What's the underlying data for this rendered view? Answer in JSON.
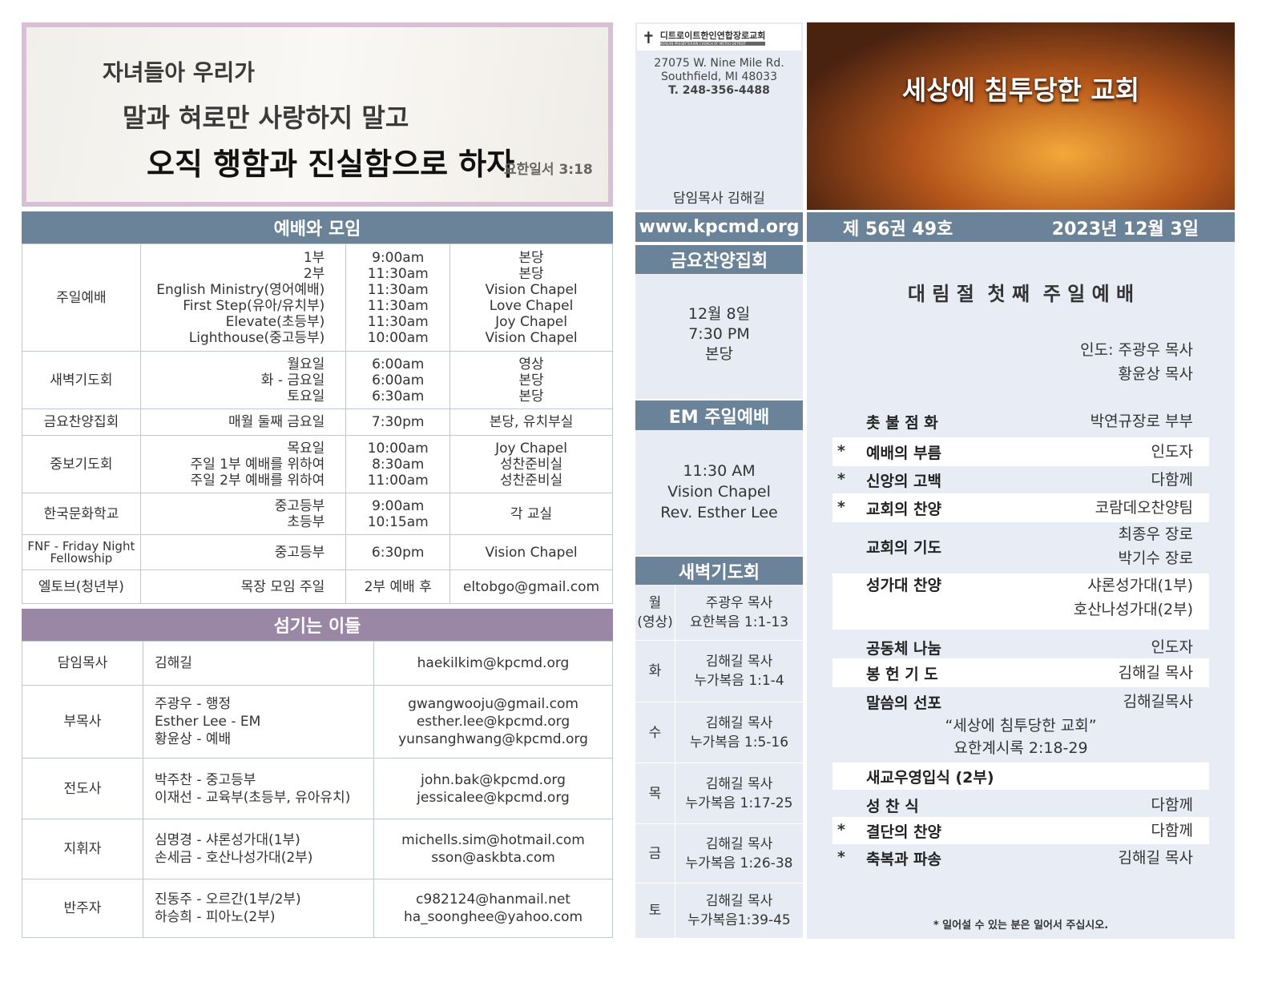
{
  "banner": {
    "line1": "자녀들아 우리가",
    "line2": "말과 혀로만 사랑하지 말고",
    "line3": "오직 행함과 진실함으로 하자",
    "ref": "요한일서 3:18"
  },
  "worship": {
    "title": "예배와 모임",
    "rows": [
      {
        "name": "주일예배",
        "what": [
          "1부",
          "2부",
          "English Ministry(영어예배)",
          "First Step(유아/유치부)",
          "Elevate(초등부)",
          "Lighthouse(중고등부)"
        ],
        "time": [
          "9:00am",
          "11:30am",
          "11:30am",
          "11:30am",
          "11:30am",
          "10:00am"
        ],
        "place": [
          "본당",
          "본당",
          "Vision Chapel",
          "Love Chapel",
          "Joy Chapel",
          "Vision Chapel"
        ]
      },
      {
        "name": "새벽기도회",
        "what": [
          "월요일",
          "화 - 금요일",
          "토요일"
        ],
        "time": [
          "6:00am",
          "6:00am",
          "6:30am"
        ],
        "place": [
          "영상",
          "본당",
          "본당"
        ]
      },
      {
        "name": "금요찬양집회",
        "what": [
          "매월 둘째 금요일"
        ],
        "time": [
          "7:30pm"
        ],
        "place": [
          "본당, 유치부실"
        ]
      },
      {
        "name": "중보기도회",
        "what": [
          "목요일",
          "주일 1부 예배를 위하여",
          "주일 2부 예배를 위하여"
        ],
        "time": [
          "10:00am",
          "8:30am",
          "11:00am"
        ],
        "place": [
          "Joy Chapel",
          "성찬준비실",
          "성찬준비실"
        ]
      },
      {
        "name": "한국문화학교",
        "what": [
          "중고등부",
          "초등부"
        ],
        "time": [
          "9:00am",
          "10:15am"
        ],
        "place": [
          "각 교실"
        ]
      },
      {
        "name": "FNF - Friday Night Fellowship",
        "what": [
          "중고등부"
        ],
        "time": [
          "6:30pm"
        ],
        "place": [
          "Vision Chapel"
        ]
      },
      {
        "name": "엘토브(청년부)",
        "what": [
          "목장 모임 주일"
        ],
        "time": [
          "2부 예배 후"
        ],
        "place": [
          "eltobgo@gmail.com"
        ]
      }
    ]
  },
  "staff": {
    "title": "섬기는 이들",
    "rows": [
      {
        "role": "담임목사",
        "names": [
          "김해길"
        ],
        "emails": [
          "haekilkim@kpcmd.org"
        ]
      },
      {
        "role": "부목사",
        "names": [
          "주광우 - 행정",
          "Esther Lee - EM",
          "황윤상 - 예배"
        ],
        "emails": [
          "gwangwooju@gmail.com",
          "esther.lee@kpcmd.org",
          "yunsanghwang@kpcmd.org"
        ]
      },
      {
        "role": "전도사",
        "names": [
          "박주찬 - 중고등부",
          "이재선 - 교육부(초등부, 유아유치)"
        ],
        "emails": [
          "john.bak@kpcmd.org",
          "jessicalee@kpcmd.org"
        ]
      },
      {
        "role": "지휘자",
        "names": [
          "심명경 - 샤론성가대(1부)",
          "손세금 - 호산나성가대(2부)"
        ],
        "emails": [
          "michells.sim@hotmail.com",
          "sson@askbta.com"
        ]
      },
      {
        "role": "반주자",
        "names": [
          "진동주 - 오르간(1부/2부)",
          "하승희 - 피아노(2부)"
        ],
        "emails": [
          "c982124@hanmail.net",
          "ha_soonghee@yahoo.com"
        ]
      }
    ]
  },
  "church": {
    "logo_text": "디트로이트한인연합장로교회",
    "logo_sub": "KOREAN PRESBYTERIAN CHURCH OF METRO DETROIT",
    "address": "27075 W. Nine Mile Rd.",
    "city": "Southfield, MI 48033",
    "phone": "T. 248-356-4488",
    "pastor": "담임목사 김해길",
    "website": "www.kpcmd.org"
  },
  "friday": {
    "title": "금요찬양집회",
    "lines": [
      "12월 8일",
      "7:30 PM",
      "본당"
    ]
  },
  "em": {
    "title": "EM 주일예배",
    "lines": [
      "11:30 AM",
      "Vision Chapel",
      "Rev. Esther Lee"
    ]
  },
  "dawn": {
    "title": "새벽기도회",
    "rows": [
      {
        "day": "월\n(영상)",
        "leader": "주광우 목사",
        "text": "요한복음 1:1-13"
      },
      {
        "day": "화",
        "leader": "김해길 목사",
        "text": "누가복음 1:1-4"
      },
      {
        "day": "수",
        "leader": "김해길 목사",
        "text": "누가복음 1:5-16"
      },
      {
        "day": "목",
        "leader": "김해길 목사",
        "text": "누가복음 1:17-25"
      },
      {
        "day": "금",
        "leader": "김해길 목사",
        "text": "누가복음 1:26-38"
      },
      {
        "day": "토",
        "leader": "김해길 목사",
        "text": "누가복음1:39-45"
      }
    ]
  },
  "header": {
    "image_title": "세상에 침투당한 교회",
    "issue": "제 56권 49호",
    "date": "2023년 12월 3일"
  },
  "service": {
    "title": "대 림 절  첫 째  주 일 예 배",
    "leader1": "인도: 주광우 목사",
    "leader2": "황윤상 목사",
    "items": [
      {
        "star": "",
        "name": "촛 불 점 화",
        "by": [
          "박연규장로 부부"
        ]
      },
      {
        "star": "*",
        "name": "예배의 부름",
        "by": [
          "인도자"
        ]
      },
      {
        "star": "*",
        "name": "신앙의 고백",
        "by": [
          "다함께"
        ]
      },
      {
        "star": "*",
        "name": "교회의 찬양",
        "by": [
          "코람데오찬양팀"
        ]
      },
      {
        "star": "",
        "name": "교회의 기도",
        "by": [
          "최종우 장로",
          "박기수 장로"
        ]
      },
      {
        "star": "",
        "name": "성가대 찬양",
        "by": [
          "샤론성가대(1부)",
          "호산나성가대(2부)"
        ]
      },
      {
        "star": "",
        "name": "공동체 나눔",
        "by": [
          "인도자"
        ]
      },
      {
        "star": "",
        "name": "봉 헌 기 도",
        "by": [
          "김해길 목사"
        ]
      },
      {
        "star": "",
        "name": "말씀의 선포",
        "by": [
          "김해길목사"
        ]
      },
      {
        "star": "",
        "name": "새교우영입식 (2부)",
        "by": [
          ""
        ]
      },
      {
        "star": "",
        "name": "성  찬  식",
        "by": [
          "다함께"
        ]
      },
      {
        "star": "*",
        "name": "결단의 찬양",
        "by": [
          "다함께"
        ]
      },
      {
        "star": "*",
        "name": "축복과 파송",
        "by": [
          "김해길 목사"
        ]
      }
    ],
    "sermon_title": "“세상에 침투당한 교회”",
    "sermon_text": "요한계시록 2:18-29",
    "note": "* 일어설 수 있는 분은 일어서 주십시오."
  }
}
